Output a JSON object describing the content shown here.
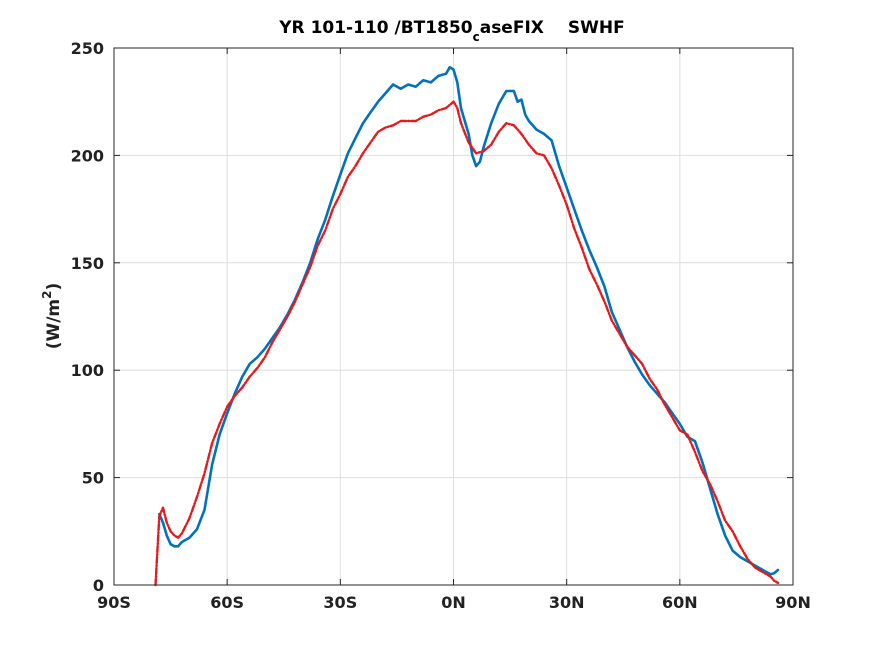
{
  "chart_data": {
    "type": "line",
    "title": {
      "before_subscript": "YR 101-110 /BT1850",
      "subscript": "c",
      "after_subscript": "aseFIX",
      "field": "SWHF"
    },
    "ylabel": {
      "text": "(W/m",
      "superscript": "2",
      "close": ")"
    },
    "xlabel": "",
    "xlim": [
      -90,
      90
    ],
    "ylim": [
      0,
      250
    ],
    "xticks": [
      -90,
      -60,
      -30,
      0,
      30,
      60,
      90
    ],
    "xtick_labels": [
      "90S",
      "60S",
      "30S",
      "0N",
      "30N",
      "60N",
      "90N"
    ],
    "yticks": [
      0,
      50,
      100,
      150,
      200,
      250
    ],
    "ytick_labels": [
      "0",
      "50",
      "100",
      "150",
      "200",
      "250"
    ],
    "grid": true,
    "series": [
      {
        "color": "#0072BD",
        "style": "solid",
        "points": [
          [
            -78,
            33
          ],
          [
            -77,
            29
          ],
          [
            -76,
            23
          ],
          [
            -75,
            19
          ],
          [
            -74,
            18
          ],
          [
            -73,
            18
          ],
          [
            -72,
            20
          ],
          [
            -70,
            22
          ],
          [
            -68,
            26
          ],
          [
            -66,
            35
          ],
          [
            -64,
            56
          ],
          [
            -62,
            70
          ],
          [
            -60,
            80
          ],
          [
            -58,
            89
          ],
          [
            -56,
            97
          ],
          [
            -54,
            103
          ],
          [
            -52,
            106
          ],
          [
            -50,
            110
          ],
          [
            -48,
            115
          ],
          [
            -46,
            120
          ],
          [
            -44,
            126
          ],
          [
            -42,
            133
          ],
          [
            -40,
            141
          ],
          [
            -38,
            150
          ],
          [
            -36,
            161
          ],
          [
            -34,
            170
          ],
          [
            -32,
            181
          ],
          [
            -30,
            191
          ],
          [
            -28,
            201
          ],
          [
            -26,
            208
          ],
          [
            -24,
            215
          ],
          [
            -22,
            220
          ],
          [
            -20,
            225
          ],
          [
            -18,
            229
          ],
          [
            -16,
            233
          ],
          [
            -14,
            231
          ],
          [
            -12,
            233
          ],
          [
            -10,
            232
          ],
          [
            -8,
            235
          ],
          [
            -6,
            234
          ],
          [
            -4,
            237
          ],
          [
            -2,
            238
          ],
          [
            -1,
            241
          ],
          [
            0,
            240
          ],
          [
            1,
            234
          ],
          [
            2,
            222
          ],
          [
            4,
            210
          ],
          [
            5,
            200
          ],
          [
            6,
            195
          ],
          [
            7,
            197
          ],
          [
            8,
            204
          ],
          [
            10,
            215
          ],
          [
            12,
            224
          ],
          [
            14,
            230
          ],
          [
            16,
            230
          ],
          [
            17,
            225
          ],
          [
            18,
            226
          ],
          [
            19,
            219
          ],
          [
            20,
            216
          ],
          [
            22,
            212
          ],
          [
            24,
            210
          ],
          [
            26,
            207
          ],
          [
            28,
            195
          ],
          [
            30,
            185
          ],
          [
            32,
            175
          ],
          [
            34,
            165
          ],
          [
            36,
            156
          ],
          [
            38,
            148
          ],
          [
            40,
            139
          ],
          [
            42,
            127
          ],
          [
            44,
            119
          ],
          [
            46,
            111
          ],
          [
            48,
            104
          ],
          [
            50,
            98
          ],
          [
            52,
            93
          ],
          [
            54,
            89
          ],
          [
            56,
            85
          ],
          [
            58,
            80
          ],
          [
            60,
            75
          ],
          [
            62,
            69
          ],
          [
            64,
            67
          ],
          [
            66,
            57
          ],
          [
            68,
            45
          ],
          [
            70,
            33
          ],
          [
            72,
            23
          ],
          [
            74,
            16
          ],
          [
            76,
            13
          ],
          [
            78,
            11
          ],
          [
            80,
            9
          ],
          [
            82,
            7
          ],
          [
            83,
            6
          ],
          [
            84,
            5
          ],
          [
            85,
            5.5
          ],
          [
            86,
            7
          ]
        ]
      },
      {
        "color": "#E41A1C",
        "style": "dash-dot",
        "points": [
          [
            -79,
            0
          ],
          [
            -78,
            32
          ],
          [
            -77,
            36
          ],
          [
            -76,
            29
          ],
          [
            -75,
            25
          ],
          [
            -74,
            23
          ],
          [
            -73,
            22
          ],
          [
            -72,
            24
          ],
          [
            -70,
            31
          ],
          [
            -68,
            41
          ],
          [
            -66,
            52
          ],
          [
            -64,
            66
          ],
          [
            -62,
            75
          ],
          [
            -60,
            83
          ],
          [
            -58,
            88
          ],
          [
            -56,
            92
          ],
          [
            -54,
            97
          ],
          [
            -52,
            101
          ],
          [
            -50,
            106
          ],
          [
            -48,
            113
          ],
          [
            -46,
            119
          ],
          [
            -44,
            125
          ],
          [
            -42,
            132
          ],
          [
            -40,
            140
          ],
          [
            -38,
            148
          ],
          [
            -36,
            158
          ],
          [
            -34,
            165
          ],
          [
            -32,
            175
          ],
          [
            -30,
            182
          ],
          [
            -28,
            190
          ],
          [
            -26,
            195
          ],
          [
            -24,
            201
          ],
          [
            -22,
            206
          ],
          [
            -20,
            211
          ],
          [
            -18,
            213
          ],
          [
            -16,
            214
          ],
          [
            -14,
            216
          ],
          [
            -12,
            216
          ],
          [
            -10,
            216
          ],
          [
            -8,
            218
          ],
          [
            -6,
            219
          ],
          [
            -4,
            221
          ],
          [
            -2,
            222
          ],
          [
            0,
            225
          ],
          [
            1,
            222
          ],
          [
            2,
            215
          ],
          [
            4,
            206
          ],
          [
            6,
            201
          ],
          [
            8,
            202
          ],
          [
            10,
            205
          ],
          [
            12,
            211
          ],
          [
            14,
            215
          ],
          [
            16,
            214
          ],
          [
            18,
            210
          ],
          [
            20,
            205
          ],
          [
            22,
            201
          ],
          [
            24,
            200
          ],
          [
            26,
            194
          ],
          [
            28,
            186
          ],
          [
            30,
            177
          ],
          [
            32,
            166
          ],
          [
            34,
            157
          ],
          [
            36,
            147
          ],
          [
            38,
            140
          ],
          [
            40,
            132
          ],
          [
            42,
            123
          ],
          [
            44,
            117
          ],
          [
            46,
            111
          ],
          [
            48,
            107
          ],
          [
            50,
            103
          ],
          [
            52,
            96
          ],
          [
            54,
            91
          ],
          [
            56,
            84
          ],
          [
            58,
            78
          ],
          [
            60,
            72
          ],
          [
            62,
            70
          ],
          [
            64,
            62
          ],
          [
            66,
            53
          ],
          [
            68,
            47
          ],
          [
            70,
            39
          ],
          [
            72,
            30
          ],
          [
            74,
            25
          ],
          [
            76,
            18
          ],
          [
            78,
            12
          ],
          [
            80,
            8
          ],
          [
            82,
            6
          ],
          [
            84,
            4
          ],
          [
            85,
            2
          ],
          [
            86,
            1
          ]
        ]
      }
    ]
  }
}
